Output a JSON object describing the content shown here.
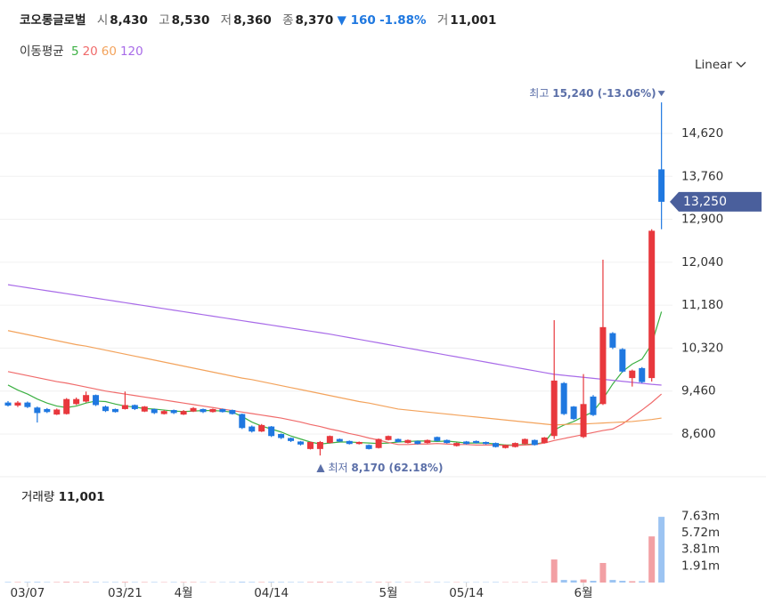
{
  "chart_data": {
    "type": "candlestick",
    "header": {
      "name": "코오롱글로벌",
      "open_label": "시",
      "open": "8,430",
      "high_label": "고",
      "high": "8,530",
      "low_label": "저",
      "low": "8,360",
      "close_label": "종",
      "close": "8,370",
      "change": "▼ 160",
      "change_pct": "-1.88%",
      "volume_label": "거",
      "volume": "11,001"
    },
    "scale_menu": "Linear",
    "categories": [
      null,
      null,
      "03/07",
      null,
      null,
      null,
      null,
      null,
      null,
      null,
      null,
      null,
      "03/21",
      null,
      null,
      null,
      null,
      null,
      "4월",
      null,
      null,
      null,
      null,
      null,
      null,
      null,
      null,
      "04/14",
      null,
      null,
      null,
      null,
      null,
      null,
      null,
      null,
      null,
      null,
      null,
      "5월",
      null,
      null,
      null,
      null,
      null,
      null,
      null,
      "05/14",
      null,
      null,
      null,
      null,
      null,
      null,
      null,
      null,
      null,
      null,
      null,
      "6월",
      null,
      null,
      null,
      null,
      null,
      null,
      null,
      null
    ],
    "candles": {
      "open": [
        9230,
        9170,
        9230,
        9130,
        9100,
        8990,
        9000,
        9200,
        9250,
        9380,
        9150,
        9100,
        9100,
        9180,
        9050,
        9100,
        9000,
        9080,
        8990,
        9050,
        9100,
        9040,
        9100,
        9080,
        9000,
        8750,
        8650,
        8750,
        8600,
        8520,
        8450,
        8300,
        8300,
        8420,
        8500,
        8460,
        8400,
        8380,
        8320,
        8480,
        8500,
        8420,
        8460,
        8420,
        8540,
        8480,
        8360,
        8450,
        8460,
        8440,
        8420,
        8320,
        8340,
        8400,
        8480,
        8420,
        8560,
        9620,
        9150,
        8540,
        9350,
        9200,
        10620,
        10300,
        9720,
        9920,
        9720,
        13900
      ],
      "high": [
        9260,
        9260,
        9250,
        9150,
        9120,
        9110,
        9320,
        9330,
        9450,
        9390,
        9170,
        9110,
        9450,
        9190,
        9160,
        9110,
        9080,
        9090,
        9080,
        9140,
        9110,
        9110,
        9110,
        9090,
        9010,
        8770,
        8800,
        8760,
        8610,
        8530,
        8460,
        8450,
        8460,
        8570,
        8510,
        8470,
        8450,
        8390,
        8510,
        8570,
        8510,
        8490,
        8470,
        8490,
        8550,
        8490,
        8430,
        8460,
        8470,
        8450,
        8430,
        8390,
        8430,
        8510,
        8490,
        8540,
        10880,
        9640,
        9160,
        9800,
        9380,
        12090,
        10640,
        10320,
        9890,
        9940,
        12700,
        15240
      ],
      "low": [
        9150,
        9140,
        9120,
        8830,
        9020,
        8980,
        8990,
        9180,
        9230,
        9160,
        9040,
        9030,
        9090,
        9080,
        9040,
        9000,
        8990,
        9000,
        8980,
        9040,
        9020,
        9030,
        9030,
        8990,
        8700,
        8630,
        8640,
        8540,
        8500,
        8440,
        8370,
        8290,
        8170,
        8410,
        8440,
        8390,
        8390,
        8290,
        8310,
        8470,
        8430,
        8410,
        8390,
        8410,
        8450,
        8410,
        8350,
        8390,
        8410,
        8390,
        8330,
        8310,
        8330,
        8390,
        8370,
        8410,
        8500,
        8980,
        8880,
        8520,
        8960,
        9180,
        10300,
        9830,
        9550,
        9620,
        9650,
        12700
      ],
      "close": [
        9170,
        9230,
        9140,
        9020,
        9040,
        9090,
        9300,
        9300,
        9380,
        9180,
        9060,
        9040,
        9180,
        9100,
        9150,
        9020,
        9060,
        9020,
        9060,
        9120,
        9040,
        9100,
        9040,
        9000,
        8720,
        8650,
        8780,
        8560,
        8520,
        8460,
        8390,
        8440,
        8440,
        8560,
        8450,
        8400,
        8440,
        8300,
        8500,
        8560,
        8440,
        8480,
        8400,
        8480,
        8460,
        8420,
        8420,
        8400,
        8420,
        8400,
        8340,
        8380,
        8420,
        8500,
        8380,
        8530,
        9670,
        9000,
        8900,
        9200,
        8980,
        10740,
        10330,
        9850,
        9870,
        9640,
        12670,
        13250
      ],
      "up_color": "#e8383d",
      "down_color": "#1f78e0"
    },
    "moving_averages": {
      "label": "이동평균",
      "series": [
        {
          "name": "5",
          "color": "#3cb043",
          "values": [
            9580,
            9480,
            9400,
            9300,
            9220,
            9160,
            9130,
            9160,
            9220,
            9260,
            9250,
            9200,
            9160,
            9140,
            9110,
            9100,
            9080,
            9060,
            9050,
            9060,
            9070,
            9070,
            9060,
            9040,
            8950,
            8840,
            8760,
            8700,
            8640,
            8560,
            8500,
            8440,
            8400,
            8420,
            8440,
            8440,
            8430,
            8420,
            8410,
            8420,
            8440,
            8450,
            8460,
            8460,
            8450,
            8460,
            8440,
            8420,
            8420,
            8420,
            8400,
            8380,
            8380,
            8390,
            8400,
            8430,
            8680,
            8780,
            8850,
            8950,
            9050,
            9300,
            9600,
            9850,
            10000,
            10100,
            10400,
            11050
          ]
        },
        {
          "name": "20",
          "color": "#f06b6b",
          "values": [
            9850,
            9810,
            9770,
            9730,
            9690,
            9650,
            9620,
            9580,
            9540,
            9500,
            9460,
            9430,
            9400,
            9370,
            9340,
            9310,
            9280,
            9250,
            9220,
            9190,
            9160,
            9130,
            9100,
            9070,
            9040,
            9010,
            8980,
            8950,
            8920,
            8880,
            8840,
            8790,
            8750,
            8700,
            8660,
            8610,
            8570,
            8520,
            8480,
            8430,
            8390,
            8390,
            8400,
            8400,
            8410,
            8400,
            8390,
            8390,
            8380,
            8380,
            8380,
            8370,
            8370,
            8380,
            8390,
            8420,
            8470,
            8510,
            8550,
            8590,
            8630,
            8670,
            8700,
            8800,
            8940,
            9080,
            9230,
            9400
          ]
        },
        {
          "name": "60",
          "color": "#f3a35c",
          "values": [
            10670,
            10630,
            10590,
            10550,
            10510,
            10470,
            10430,
            10390,
            10360,
            10320,
            10280,
            10240,
            10200,
            10160,
            10120,
            10080,
            10040,
            10000,
            9960,
            9920,
            9880,
            9840,
            9800,
            9760,
            9720,
            9690,
            9650,
            9610,
            9570,
            9530,
            9490,
            9450,
            9410,
            9370,
            9330,
            9290,
            9250,
            9220,
            9180,
            9140,
            9100,
            9080,
            9060,
            9040,
            9020,
            9000,
            8980,
            8960,
            8940,
            8920,
            8900,
            8880,
            8860,
            8840,
            8820,
            8800,
            8780,
            8790,
            8800,
            8800,
            8810,
            8820,
            8830,
            8840,
            8850,
            8870,
            8890,
            8920
          ]
        },
        {
          "name": "120",
          "color": "#a86be8",
          "values": [
            11590,
            11560,
            11530,
            11500,
            11470,
            11440,
            11410,
            11380,
            11350,
            11320,
            11290,
            11260,
            11230,
            11200,
            11170,
            11140,
            11110,
            11080,
            11050,
            11020,
            10990,
            10960,
            10930,
            10900,
            10870,
            10840,
            10810,
            10780,
            10750,
            10720,
            10690,
            10660,
            10630,
            10600,
            10565,
            10530,
            10495,
            10460,
            10425,
            10390,
            10355,
            10320,
            10285,
            10250,
            10215,
            10180,
            10145,
            10110,
            10075,
            10040,
            10005,
            9970,
            9935,
            9900,
            9865,
            9830,
            9795,
            9775,
            9755,
            9735,
            9715,
            9695,
            9675,
            9655,
            9635,
            9615,
            9595,
            9580
          ]
        }
      ]
    },
    "ylim": [
      7852,
      15688
    ],
    "yticks": [
      {
        "value": 8600,
        "label": "8,600"
      },
      {
        "value": 9460,
        "label": "9,460"
      },
      {
        "value": 10320,
        "label": "10,320"
      },
      {
        "value": 11180,
        "label": "11,180"
      },
      {
        "value": 12040,
        "label": "12,040"
      },
      {
        "value": 12900,
        "label": "12,900"
      },
      {
        "value": 13760,
        "label": "13,760"
      },
      {
        "value": 14620,
        "label": "14,620"
      }
    ],
    "grid": true,
    "high_annotation": {
      "label": "최고",
      "text": "15,240 (-13.06%)"
    },
    "low_annotation": {
      "label": "최저",
      "text": "8,170 (62.18%)"
    },
    "last_price_label": "13,250",
    "volume": {
      "label": "거래량",
      "value_label": "11,001",
      "values": [
        0.06,
        0.05,
        0.06,
        0.07,
        0.05,
        0.05,
        0.08,
        0.06,
        0.07,
        0.06,
        0.05,
        0.05,
        0.07,
        0.05,
        0.05,
        0.05,
        0.04,
        0.05,
        0.05,
        0.05,
        0.04,
        0.04,
        0.04,
        0.05,
        0.08,
        0.06,
        0.05,
        0.07,
        0.06,
        0.05,
        0.05,
        0.06,
        0.08,
        0.06,
        0.05,
        0.05,
        0.04,
        0.05,
        0.06,
        0.05,
        0.05,
        0.04,
        0.04,
        0.05,
        0.05,
        0.04,
        0.04,
        0.04,
        0.04,
        0.04,
        0.05,
        0.04,
        0.04,
        0.05,
        0.05,
        0.06,
        2.65,
        0.3,
        0.25,
        0.35,
        0.2,
        2.25,
        0.3,
        0.2,
        0.15,
        0.15,
        5.3,
        7.55
      ],
      "up_color": "#f2a0a4",
      "down_color": "#9cc4f2",
      "ylim": [
        0,
        11.24
      ],
      "yticks": [
        {
          "value": 1.91,
          "label": "1.91m"
        },
        {
          "value": 3.81,
          "label": "3.81m"
        },
        {
          "value": 5.72,
          "label": "5.72m"
        },
        {
          "value": 7.63,
          "label": "7.63m"
        }
      ]
    }
  }
}
